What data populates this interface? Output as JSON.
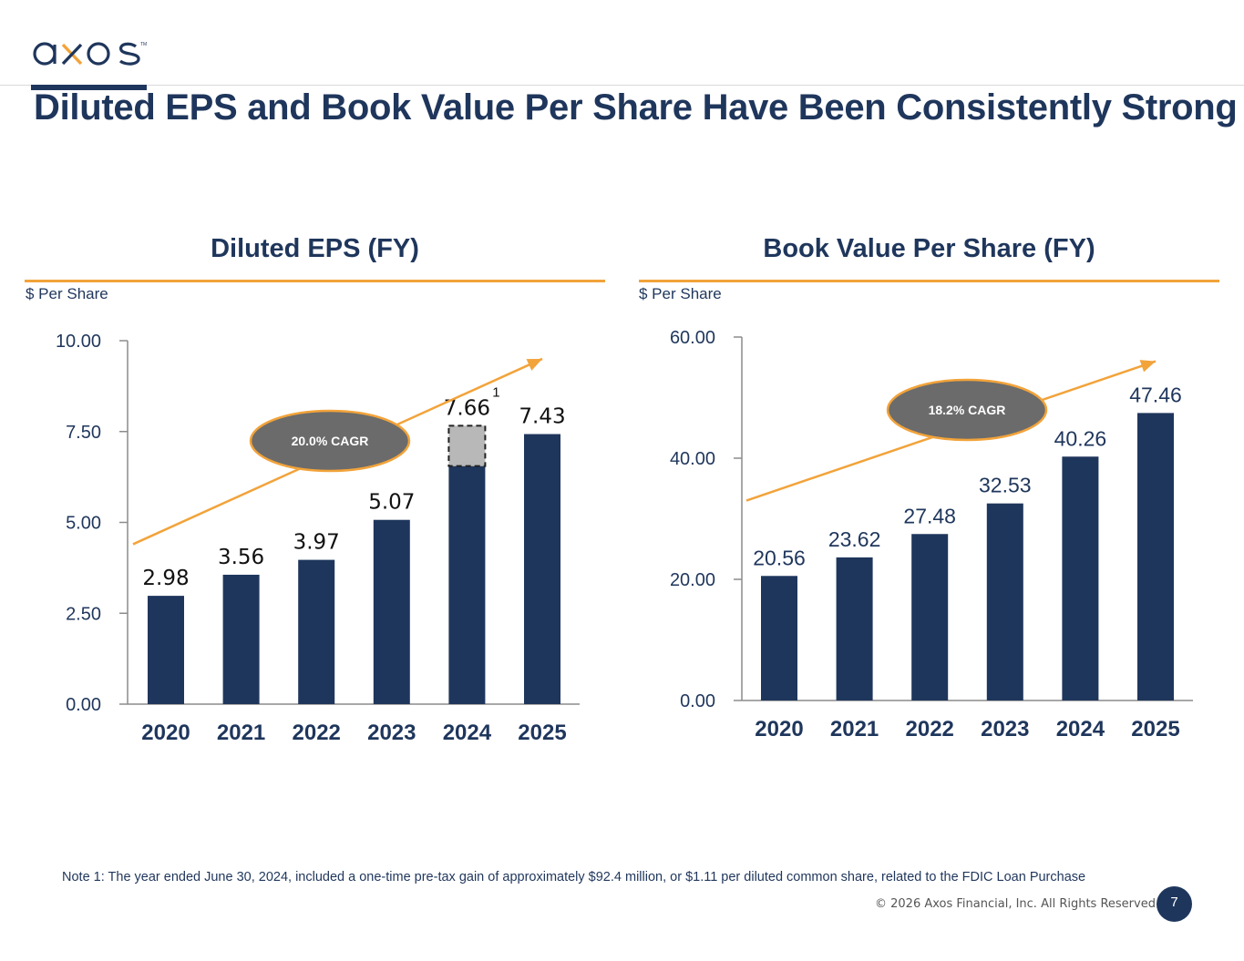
{
  "header": {
    "logo_text": "axos",
    "title": "Diluted EPS and Book Value Per Share Have Been Consistently Strong"
  },
  "colors": {
    "bar": "#1f365c",
    "accent": "#f2a33a",
    "badge_fill": "#6b6b6b",
    "highlight_fill": "#b8b8b8"
  },
  "chart_data": [
    {
      "type": "bar",
      "title": "Diluted EPS (FY)",
      "ylabel": "$ Per Share",
      "categories": [
        "2020",
        "2021",
        "2022",
        "2023",
        "2024",
        "2025"
      ],
      "values": [
        2.98,
        3.56,
        3.97,
        5.07,
        7.66,
        7.43
      ],
      "data_labels": [
        "2.98",
        "3.56",
        "3.97",
        "5.07",
        "7.66",
        "7.43"
      ],
      "yticks": [
        "0.00",
        "2.50",
        "5.00",
        "7.50",
        "10.00"
      ],
      "ytick_values": [
        0,
        2.5,
        5,
        7.5,
        10
      ],
      "ylim": [
        0,
        10
      ],
      "highlight": {
        "category": "2024",
        "from": 6.55,
        "to": 7.66,
        "style": "dashed grey box",
        "footnote": "1"
      },
      "trend_arrow": {
        "from": [
          0,
          4.4
        ],
        "to": [
          5,
          9.5
        ]
      },
      "cagr_badge": "20.0% CAGR"
    },
    {
      "type": "bar",
      "title": "Book Value Per Share (FY)",
      "ylabel": "$ Per Share",
      "categories": [
        "2020",
        "2021",
        "2022",
        "2023",
        "2024",
        "2025"
      ],
      "values": [
        20.56,
        23.62,
        27.48,
        32.53,
        40.26,
        47.46
      ],
      "data_labels": [
        "20.56",
        "23.62",
        "27.48",
        "32.53",
        "40.26",
        "47.46"
      ],
      "yticks": [
        "0.00",
        "20.00",
        "40.00",
        "60.00"
      ],
      "ytick_values": [
        0,
        20,
        40,
        60
      ],
      "ylim": [
        0,
        60
      ],
      "trend_arrow": {
        "from": [
          0,
          33
        ],
        "to": [
          5,
          56
        ]
      },
      "cagr_badge": "18.2% CAGR"
    }
  ],
  "footer": {
    "note": "Note 1: The year ended June 30, 2024, included a one-time pre-tax gain of approximately $92.4 million, or $1.11 per diluted common share, related to the FDIC Loan Purchase",
    "copyright": "© 2026 Axos Financial, Inc. All Rights Reserved.",
    "page_number": "7"
  }
}
